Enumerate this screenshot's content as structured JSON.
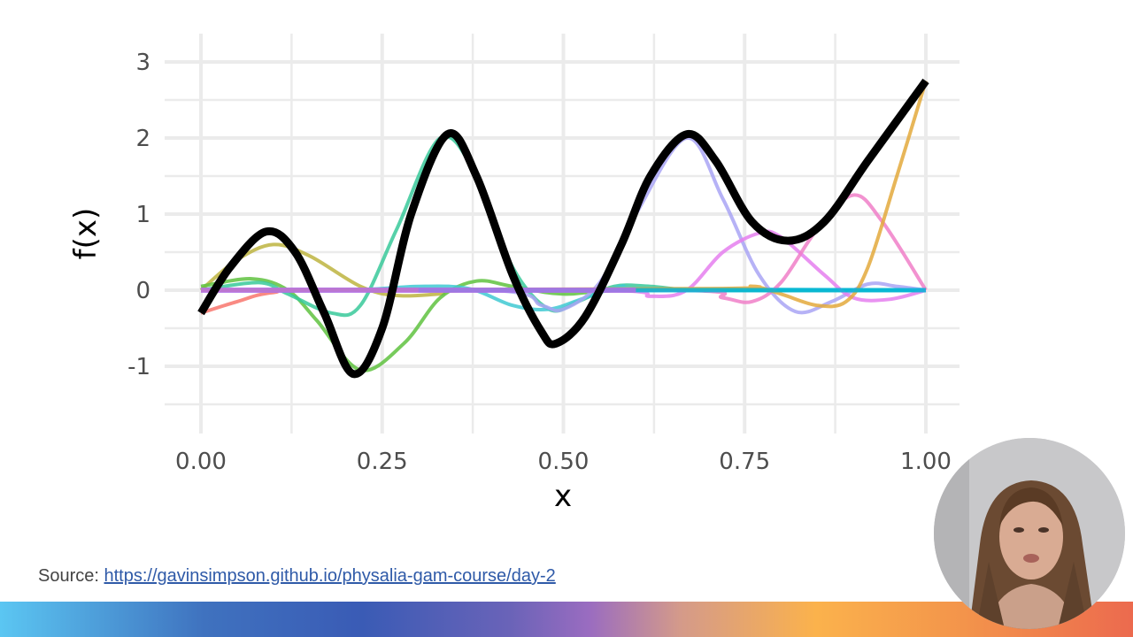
{
  "chart_data": {
    "type": "line",
    "xlabel": "x",
    "ylabel": "f(x)",
    "xlim": [
      0,
      1
    ],
    "ylim": [
      -1.5,
      3.1
    ],
    "x_ticks": [
      "0.00",
      "0.25",
      "0.50",
      "0.75",
      "1.00"
    ],
    "y_ticks": [
      "-1",
      "0",
      "1",
      "2",
      "3"
    ],
    "grid": true,
    "legend": "none",
    "series": [
      {
        "color": "#F8766D",
        "width": 4,
        "points": [
          [
            0,
            -0.3
          ],
          [
            0.05,
            -0.15
          ],
          [
            0.1,
            -0.03
          ],
          [
            0.2,
            0
          ],
          [
            1,
            0
          ]
        ]
      },
      {
        "color": "#BDB440",
        "width": 4,
        "points": [
          [
            0,
            0
          ],
          [
            0.05,
            0.4
          ],
          [
            0.1,
            0.6
          ],
          [
            0.15,
            0.45
          ],
          [
            0.22,
            0.05
          ],
          [
            0.27,
            -0.07
          ],
          [
            0.33,
            -0.05
          ],
          [
            0.4,
            0
          ],
          [
            1,
            0
          ]
        ]
      },
      {
        "color": "#5FC23F",
        "width": 4,
        "points": [
          [
            0,
            0.05
          ],
          [
            0.07,
            0.15
          ],
          [
            0.12,
            0
          ],
          [
            0.16,
            -0.4
          ],
          [
            0.22,
            -1.05
          ],
          [
            0.28,
            -0.7
          ],
          [
            0.33,
            -0.1
          ],
          [
            0.38,
            0.12
          ],
          [
            0.43,
            0.05
          ],
          [
            0.5,
            -0.05
          ],
          [
            0.6,
            0
          ],
          [
            1,
            0
          ]
        ]
      },
      {
        "color": "#38C99A",
        "width": 4,
        "points": [
          [
            0,
            0
          ],
          [
            0.08,
            0.1
          ],
          [
            0.12,
            -0.05
          ],
          [
            0.18,
            -0.3
          ],
          [
            0.22,
            -0.2
          ],
          [
            0.27,
            0.8
          ],
          [
            0.33,
            2.0
          ],
          [
            0.38,
            1.5
          ],
          [
            0.43,
            0.3
          ],
          [
            0.48,
            -0.25
          ],
          [
            0.52,
            -0.15
          ],
          [
            0.57,
            0.05
          ],
          [
            0.62,
            0.05
          ],
          [
            0.7,
            0
          ],
          [
            1,
            0
          ]
        ]
      },
      {
        "color": "#3FC9D2",
        "width": 4,
        "points": [
          [
            0,
            0
          ],
          [
            0.2,
            0
          ],
          [
            0.3,
            0.05
          ],
          [
            0.37,
            0.02
          ],
          [
            0.43,
            -0.2
          ],
          [
            0.48,
            -0.25
          ],
          [
            0.53,
            -0.1
          ],
          [
            0.58,
            0.05
          ],
          [
            0.62,
            0.02
          ],
          [
            1,
            0
          ]
        ]
      },
      {
        "color": "#A9A4F5",
        "width": 4,
        "points": [
          [
            0,
            0
          ],
          [
            0.4,
            0
          ],
          [
            0.47,
            -0.2
          ],
          [
            0.5,
            -0.25
          ],
          [
            0.55,
            0.1
          ],
          [
            0.6,
            1.0
          ],
          [
            0.67,
            2.0
          ],
          [
            0.72,
            1.2
          ],
          [
            0.77,
            0.2
          ],
          [
            0.82,
            -0.28
          ],
          [
            0.87,
            -0.15
          ],
          [
            0.92,
            0.08
          ],
          [
            0.96,
            0.05
          ],
          [
            1,
            0
          ]
        ]
      },
      {
        "color": "#E57FEF",
        "width": 4,
        "points": [
          [
            0,
            0
          ],
          [
            0.55,
            0
          ],
          [
            0.62,
            -0.08
          ],
          [
            0.67,
            0
          ],
          [
            0.72,
            0.5
          ],
          [
            0.77,
            0.75
          ],
          [
            0.8,
            0.7
          ],
          [
            0.86,
            0.2
          ],
          [
            0.9,
            -0.1
          ],
          [
            0.95,
            -0.12
          ],
          [
            1,
            0
          ]
        ]
      },
      {
        "color": "#F07FC8",
        "width": 4,
        "points": [
          [
            0,
            0
          ],
          [
            0.65,
            0
          ],
          [
            0.72,
            -0.1
          ],
          [
            0.76,
            -0.15
          ],
          [
            0.8,
            0.1
          ],
          [
            0.85,
            0.8
          ],
          [
            0.9,
            1.25
          ],
          [
            0.94,
            0.9
          ],
          [
            1,
            0
          ]
        ]
      },
      {
        "color": "#E3A93C",
        "width": 4,
        "points": [
          [
            0,
            0
          ],
          [
            0.7,
            0.02
          ],
          [
            0.76,
            0.05
          ],
          [
            0.8,
            -0.05
          ],
          [
            0.85,
            -0.2
          ],
          [
            0.89,
            -0.15
          ],
          [
            0.92,
            0.3
          ],
          [
            0.96,
            1.5
          ],
          [
            1,
            2.75
          ]
        ]
      },
      {
        "color": "#00B5D6",
        "width": 5,
        "points": [
          [
            0.3,
            0
          ],
          [
            1,
            0
          ]
        ]
      },
      {
        "color": "#B46FE6",
        "width": 6,
        "points": [
          [
            0,
            0
          ],
          [
            0.6,
            0
          ]
        ]
      },
      {
        "color": "#000000",
        "width": 9,
        "points": [
          [
            0,
            -0.3
          ],
          [
            0.04,
            0.3
          ],
          [
            0.09,
            0.77
          ],
          [
            0.13,
            0.5
          ],
          [
            0.17,
            -0.3
          ],
          [
            0.21,
            -1.1
          ],
          [
            0.25,
            -0.5
          ],
          [
            0.29,
            1.0
          ],
          [
            0.34,
            2.05
          ],
          [
            0.38,
            1.5
          ],
          [
            0.43,
            0.2
          ],
          [
            0.47,
            -0.55
          ],
          [
            0.49,
            -0.7
          ],
          [
            0.53,
            -0.35
          ],
          [
            0.58,
            0.6
          ],
          [
            0.62,
            1.5
          ],
          [
            0.67,
            2.05
          ],
          [
            0.71,
            1.7
          ],
          [
            0.76,
            0.9
          ],
          [
            0.81,
            0.65
          ],
          [
            0.86,
            0.9
          ],
          [
            0.92,
            1.7
          ],
          [
            1,
            2.75
          ]
        ]
      }
    ]
  },
  "source": {
    "label": "Source:",
    "link": "https://gavinsimpson.github.io/physalia-gam-course/day-2"
  },
  "colors": {
    "grid": "#ebebeb",
    "link": "#2f5aa8"
  }
}
